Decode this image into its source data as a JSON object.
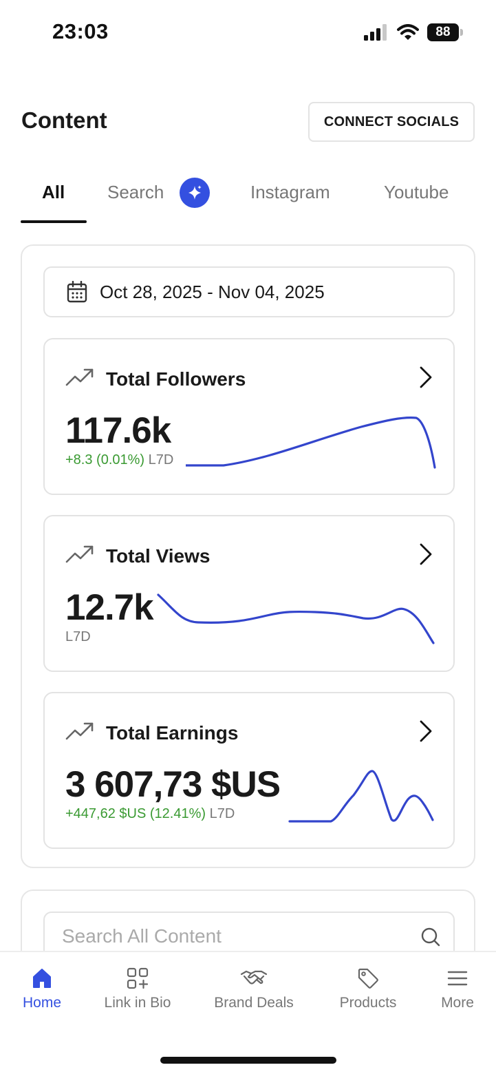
{
  "status_bar": {
    "time": "23:03",
    "battery": "88"
  },
  "header": {
    "title": "Content",
    "connect_button": "CONNECT SOCIALS"
  },
  "tabs": [
    {
      "label": "All",
      "active": true
    },
    {
      "label": "Search",
      "badge_icon": "sparkle-icon"
    },
    {
      "label": "Instagram"
    },
    {
      "label": "Youtube"
    }
  ],
  "date_range": {
    "label": "Oct 28, 2025 - Nov 04, 2025",
    "icon": "calendar-icon"
  },
  "metrics": {
    "followers": {
      "title": "Total Followers",
      "value": "117.6k",
      "delta": "+8.3 (0.01%)",
      "period": "L7D"
    },
    "views": {
      "title": "Total Views",
      "value": "12.7k",
      "period": "L7D"
    },
    "earnings": {
      "title": "Total Earnings",
      "value": "3 607,73 $US",
      "delta": "+447,62 $US (12.41%)",
      "period": "L7D"
    }
  },
  "search": {
    "placeholder": "Search All Content"
  },
  "bottom_nav": [
    {
      "label": "Home",
      "icon": "home-icon",
      "active": true
    },
    {
      "label": "Link in Bio",
      "icon": "link-in-bio-icon"
    },
    {
      "label": "Brand Deals",
      "icon": "handshake-icon"
    },
    {
      "label": "Products",
      "icon": "tag-icon"
    },
    {
      "label": "More",
      "icon": "menu-icon"
    }
  ],
  "colors": {
    "accent": "#3450e0",
    "positive": "#3a9a32",
    "sparkline": "#3345cc"
  }
}
